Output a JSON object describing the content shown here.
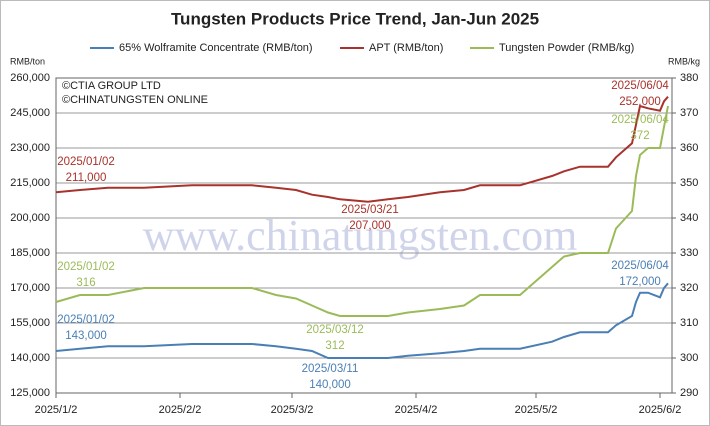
{
  "chart_data": {
    "type": "line",
    "title": "Tungsten Products Price Trend, Jan-Jun 2025",
    "y_unit": "RMB/ton",
    "y2_unit": "RMB/kg",
    "copyright": [
      "©CTIA GROUP LTD",
      "©CHINATUNGSTEN ONLINE"
    ],
    "watermark": "www.chinatungsten.com",
    "x": [
      "2025/1/2",
      "2025/1/8",
      "2025/1/15",
      "2025/1/24",
      "2025/2/5",
      "2025/2/20",
      "2025/2/26",
      "2025/3/3",
      "2025/3/7",
      "2025/3/11",
      "2025/3/14",
      "2025/3/21",
      "2025/3/26",
      "2025/3/31",
      "2025/4/8",
      "2025/4/14",
      "2025/4/18",
      "2025/4/28",
      "2025/5/6",
      "2025/5/9",
      "2025/5/13",
      "2025/5/20",
      "2025/5/22",
      "2025/5/26",
      "2025/5/27",
      "2025/5/28",
      "2025/5/30",
      "2025/6/2",
      "2025/6/3",
      "2025/6/4"
    ],
    "xlim": [
      "2025/1/2",
      "2025/6/5"
    ],
    "xticks": [
      "2025/1/2",
      "2025/2/2",
      "2025/3/2",
      "2025/4/2",
      "2025/5/2",
      "2025/6/2"
    ],
    "ylim": [
      125000,
      260000
    ],
    "yticks": [
      {
        "value": 125000,
        "label": "125,000"
      },
      {
        "value": 140000,
        "label": "140,000"
      },
      {
        "value": 155000,
        "label": "155,000"
      },
      {
        "value": 170000,
        "label": "170,000"
      },
      {
        "value": 185000,
        "label": "185,000"
      },
      {
        "value": 200000,
        "label": "200,000"
      },
      {
        "value": 215000,
        "label": "215,000"
      },
      {
        "value": 230000,
        "label": "230,000"
      },
      {
        "value": 245000,
        "label": "245,000"
      },
      {
        "value": 260000,
        "label": "260,000"
      }
    ],
    "y2lim": [
      290,
      380
    ],
    "y2ticks": [
      290,
      300,
      310,
      320,
      330,
      340,
      350,
      360,
      370,
      380
    ],
    "grid": true,
    "series": [
      {
        "name": "65% Wolframite Concentrate (RMB/ton)",
        "color": "#4a7fb5",
        "values": [
          143000,
          144000,
          145000,
          145000,
          146000,
          146000,
          145000,
          144000,
          143000,
          140000,
          140000,
          140000,
          140000,
          141000,
          142000,
          143000,
          144000,
          144000,
          147000,
          149000,
          151000,
          151000,
          154000,
          158000,
          164000,
          168000,
          168000,
          166000,
          170000,
          172000
        ],
        "annotations": [
          {
            "date": "2025/01/02",
            "label": "143,000"
          },
          {
            "date": "2025/03/11",
            "label": "140,000"
          },
          {
            "date": "2025/06/04",
            "label": "172,000"
          }
        ]
      },
      {
        "name": "APT (RMB/ton)",
        "color": "#a8322c",
        "values": [
          211000,
          212000,
          213000,
          213000,
          214000,
          214000,
          213000,
          212000,
          210000,
          209000,
          208000,
          207000,
          208000,
          209000,
          211000,
          212000,
          214000,
          214000,
          218000,
          220000,
          222000,
          222000,
          226000,
          232000,
          240000,
          248000,
          247000,
          246000,
          250000,
          252000
        ],
        "annotations": [
          {
            "date": "2025/01/02",
            "label": "211,000"
          },
          {
            "date": "2025/03/21",
            "label": "207,000"
          },
          {
            "date": "2025/06/04",
            "label": "252,000"
          }
        ]
      },
      {
        "name": "Tungsten Powder (RMB/kg)",
        "color": "#9bbb59",
        "axis": "y2",
        "values": [
          316,
          318,
          318,
          320,
          320,
          320,
          318,
          317,
          315,
          313,
          312,
          312,
          312,
          313,
          314,
          315,
          318,
          318,
          326,
          329,
          330,
          330,
          337,
          342,
          352,
          358,
          360,
          360,
          366,
          372
        ],
        "annotations": [
          {
            "date": "2025/01/02",
            "label": "316"
          },
          {
            "date": "2025/03/12",
            "label": "312"
          },
          {
            "date": "2025/06/04",
            "label": "372"
          }
        ]
      }
    ]
  }
}
